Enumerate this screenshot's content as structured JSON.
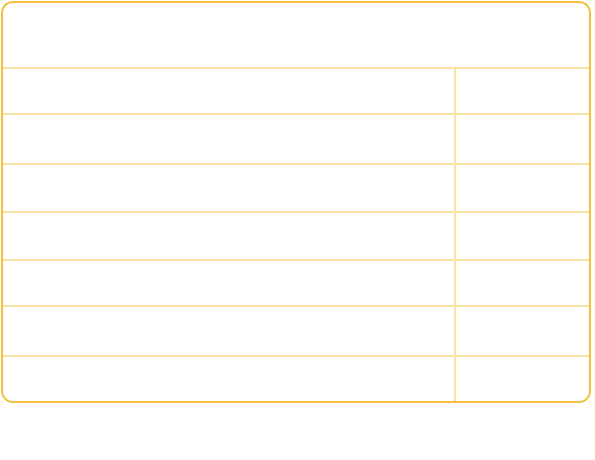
{
  "panel": {
    "header": "",
    "rows": [
      {
        "label": "",
        "value": ""
      },
      {
        "label": "",
        "value": ""
      },
      {
        "label": "",
        "value": ""
      },
      {
        "label": "",
        "value": ""
      },
      {
        "label": "",
        "value": ""
      },
      {
        "label": "",
        "value": ""
      },
      {
        "label": "",
        "value": ""
      }
    ]
  },
  "colors": {
    "border": "#f5bd3a",
    "grid": "#fbe1a2",
    "background": "#ffffff"
  }
}
